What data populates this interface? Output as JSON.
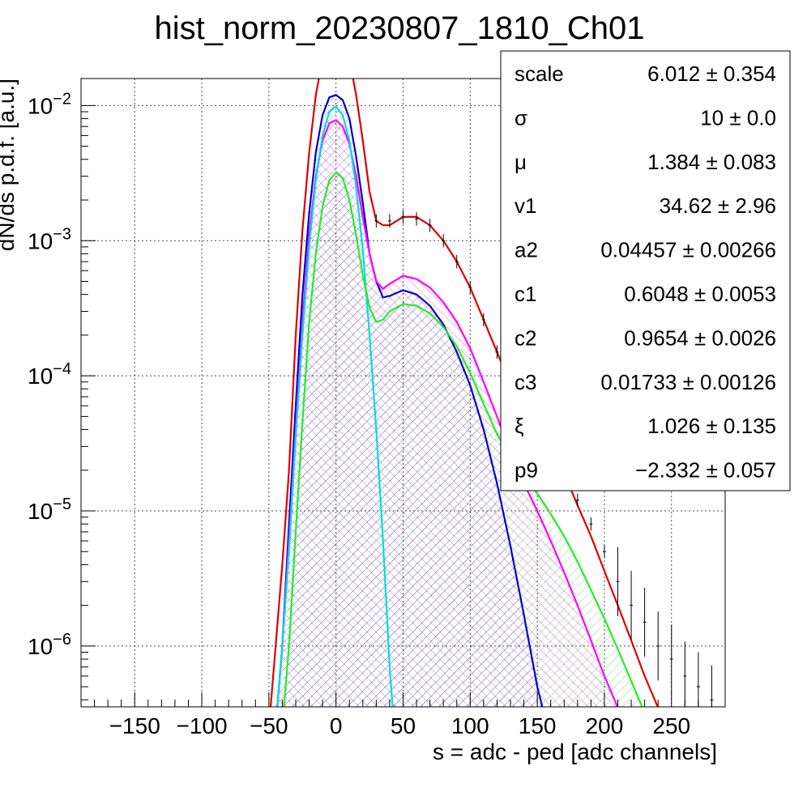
{
  "chart_data": {
    "type": "line",
    "title": "hist_norm_20230807_1810_Ch01",
    "xlabel": "s = adc - ped [adc channels]",
    "ylabel": "dN/ds p.d.f. [a.u.]",
    "xlim": [
      -190,
      290
    ],
    "ylim_log10": [
      -6.45,
      -1.8
    ],
    "yscale": "log",
    "grid": true,
    "x_ticks": [
      "−150",
      "−100",
      "−50",
      "0",
      "50",
      "100",
      "150",
      "200",
      "250"
    ],
    "x_tick_values": [
      -150,
      -100,
      -50,
      0,
      50,
      100,
      150,
      200,
      250
    ],
    "y_ticks": [
      {
        "base": "10",
        "exp": "−2",
        "value": 0.01
      },
      {
        "base": "10",
        "exp": "−3",
        "value": 0.001
      },
      {
        "base": "10",
        "exp": "−4",
        "value": 0.0001
      },
      {
        "base": "10",
        "exp": "−5",
        "value": 1e-05
      },
      {
        "base": "10",
        "exp": "−6",
        "value": 1e-06
      }
    ],
    "series": [
      {
        "color": "#dd0000",
        "x": [
          -50,
          -45,
          -40,
          -35,
          -30,
          -25,
          -20,
          -15,
          -10,
          -5,
          0,
          5,
          10,
          15,
          20,
          25,
          30,
          35,
          40,
          50,
          60,
          70,
          80,
          90,
          100,
          110,
          120,
          130,
          140,
          150,
          160,
          170,
          180,
          190,
          200,
          210,
          220,
          230,
          240,
          250,
          260
        ],
        "y": [
          2.5e-07,
          1e-06,
          4e-06,
          2e-05,
          0.0002,
          0.0012,
          0.0045,
          0.012,
          0.022,
          0.031,
          0.034,
          0.03,
          0.022,
          0.012,
          0.0055,
          0.0023,
          0.0014,
          0.0013,
          0.0013,
          0.0015,
          0.0015,
          0.0013,
          0.001,
          0.0007,
          0.00045,
          0.00026,
          0.00015,
          8.5e-05,
          6e-05,
          4.3e-05,
          3e-05,
          1.9e-05,
          1.1e-05,
          6.5e-06,
          3.6e-06,
          2e-06,
          1.1e-06,
          6e-07,
          3.5e-07,
          2e-07,
          1.2e-07
        ]
      },
      {
        "color": "#0000cc",
        "x": [
          -45,
          -40,
          -35,
          -30,
          -25,
          -20,
          -15,
          -10,
          -5,
          0,
          5,
          10,
          15,
          20,
          25,
          30,
          35,
          40,
          50,
          60,
          70,
          80,
          90,
          100,
          110,
          120,
          130,
          140,
          150,
          160
        ],
        "y": [
          2.5e-07,
          1e-06,
          8e-06,
          6e-05,
          0.0004,
          0.0016,
          0.0045,
          0.0085,
          0.0115,
          0.012,
          0.011,
          0.008,
          0.0042,
          0.0019,
          0.0008,
          0.0005,
          0.00038,
          0.00039,
          0.00043,
          0.0004,
          0.00033,
          0.00024,
          0.00015,
          8.5e-05,
          4e-05,
          1.6e-05,
          5.5e-06,
          1.7e-06,
          5e-07,
          2e-07
        ]
      },
      {
        "color": "#ff00ff",
        "x": [
          -45,
          -40,
          -35,
          -30,
          -25,
          -20,
          -15,
          -10,
          -5,
          0,
          5,
          10,
          15,
          20,
          25,
          30,
          35,
          40,
          50,
          60,
          70,
          80,
          90,
          100,
          110,
          120,
          130,
          140,
          150,
          160,
          170,
          180,
          190,
          200,
          210,
          220
        ],
        "y": [
          2.5e-07,
          1e-06,
          6e-06,
          4e-05,
          0.00025,
          0.0011,
          0.003,
          0.0055,
          0.0074,
          0.0078,
          0.007,
          0.0052,
          0.003,
          0.0015,
          0.0008,
          0.0005,
          0.00044,
          0.00048,
          0.00055,
          0.00052,
          0.00045,
          0.00035,
          0.00025,
          0.00016,
          9e-05,
          5e-05,
          2.7e-05,
          1.6e-05,
          1e-05,
          6e-06,
          3.5e-06,
          2e-06,
          1.1e-06,
          6e-07,
          3.5e-07,
          2.5e-07
        ]
      },
      {
        "color": "#00dddd",
        "x": [
          -45,
          -40,
          -35,
          -30,
          -25,
          -20,
          -15,
          -10,
          -5,
          0,
          5,
          10,
          15,
          20,
          25,
          30,
          35,
          40,
          45
        ],
        "y": [
          2.5e-07,
          1e-06,
          5e-06,
          3.5e-05,
          0.0002,
          0.0009,
          0.0028,
          0.006,
          0.009,
          0.0098,
          0.0085,
          0.0055,
          0.0025,
          0.00085,
          0.0002,
          4e-05,
          6e-06,
          7e-07,
          1.5e-07
        ]
      },
      {
        "color": "#22ee22",
        "x": [
          -40,
          -35,
          -30,
          -25,
          -20,
          -15,
          -10,
          -5,
          0,
          5,
          10,
          15,
          20,
          25,
          30,
          35,
          40,
          50,
          60,
          70,
          80,
          90,
          100,
          110,
          120,
          130,
          140,
          150,
          160,
          170,
          180,
          190,
          200,
          210,
          220,
          230,
          240
        ],
        "y": [
          2.5e-07,
          1e-06,
          7e-06,
          4.5e-05,
          0.00025,
          0.0008,
          0.0018,
          0.0028,
          0.0032,
          0.0029,
          0.002,
          0.0011,
          0.00055,
          0.00032,
          0.00025,
          0.00026,
          0.0003,
          0.00034,
          0.00033,
          0.00029,
          0.00023,
          0.000165,
          0.000105,
          6.2e-05,
          3.7e-05,
          2.5e-05,
          1.8e-05,
          1.35e-05,
          9.5e-06,
          6.5e-06,
          4.2e-06,
          2.6e-06,
          1.6e-06,
          9.5e-07,
          5.5e-07,
          3.2e-07,
          2e-07
        ]
      }
    ],
    "data_points": {
      "color": "#000000",
      "x": [
        30,
        40,
        50,
        60,
        70,
        80,
        90,
        100,
        110,
        120,
        130,
        140,
        150,
        160,
        170,
        180,
        190,
        200,
        210,
        220,
        230,
        240,
        250,
        260,
        270,
        280
      ],
      "y": [
        0.0014,
        0.0014,
        0.0015,
        0.00145,
        0.0013,
        0.001,
        0.0007,
        0.00045,
        0.00026,
        0.00015,
        8e-05,
        5.5e-05,
        4e-05,
        3e-05,
        2e-05,
        1.2e-05,
        8e-06,
        5e-06,
        3e-06,
        2e-06,
        1.5e-06,
        1e-06,
        8e-07,
        6e-07,
        5e-07,
        4e-07
      ]
    }
  },
  "stats": {
    "rows": [
      {
        "name": "scale",
        "value": "6.012 ± 0.354"
      },
      {
        "name": "σ",
        "value": "10 ± 0.0"
      },
      {
        "name": "μ",
        "value": "1.384 ± 0.083"
      },
      {
        "name": "v1",
        "value": "34.62 ± 2.96"
      },
      {
        "name": "a2",
        "value": "0.04457 ± 0.00266"
      },
      {
        "name": "c1",
        "value": "0.6048 ± 0.0053"
      },
      {
        "name": "c2",
        "value": "0.9654 ± 0.0026"
      },
      {
        "name": "c3",
        "value": "0.01733 ± 0.00126"
      },
      {
        "name": "ξ",
        "value": "1.026 ± 0.135"
      },
      {
        "name": "p9",
        "value": "−2.332 ± 0.057"
      }
    ]
  }
}
